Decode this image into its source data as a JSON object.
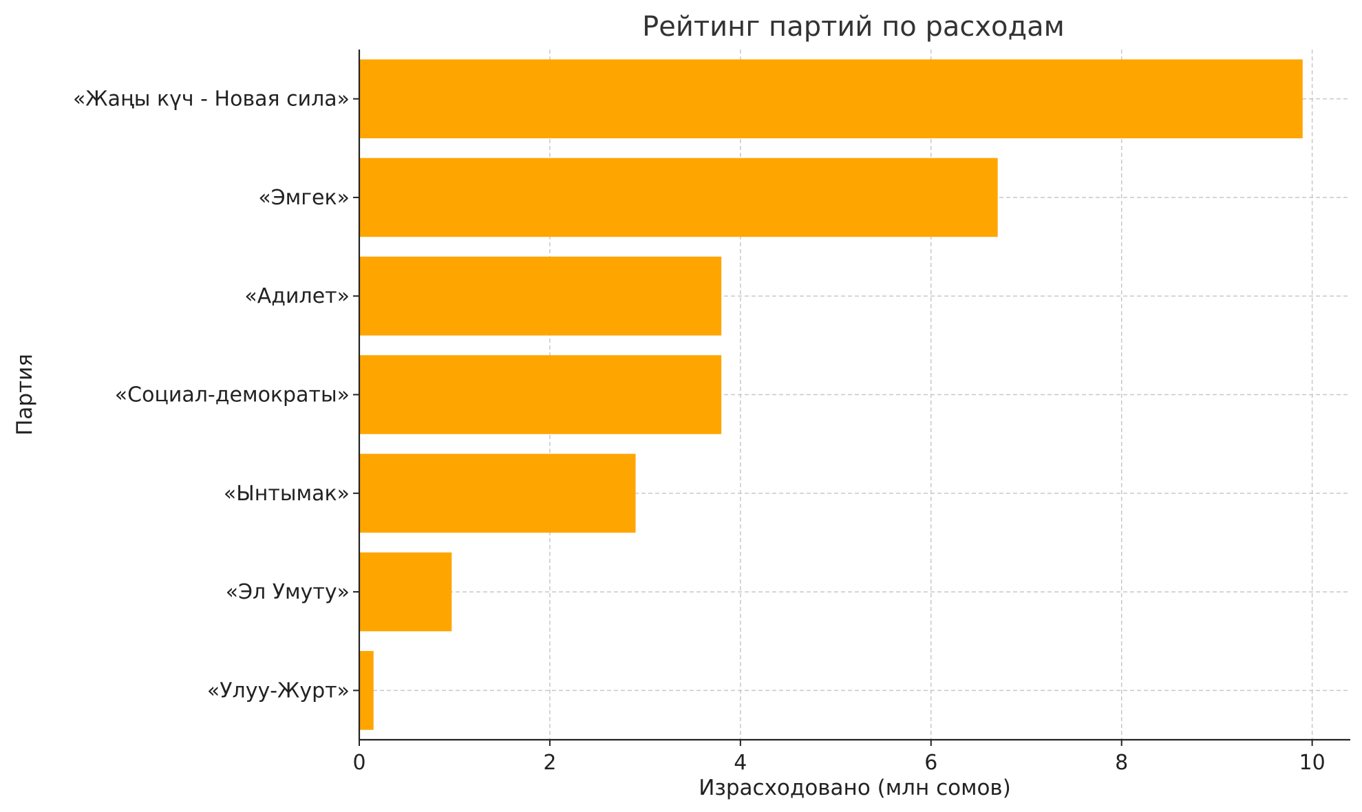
{
  "chart_data": {
    "type": "bar",
    "orientation": "horizontal",
    "title": "Рейтинг партий по расходам",
    "xlabel": "Израсходовано (млн сомов)",
    "ylabel": "Партия",
    "xlim": [
      0,
      10.4
    ],
    "xticks": [
      0,
      2,
      4,
      6,
      8,
      10
    ],
    "grid": true,
    "categories": [
      "«Жаңы күч - Новая сила»",
      "«Эмгек»",
      "«Адилет»",
      "«Социал-демократы»",
      "«Ынтымак»",
      "«Эл Умуту»",
      "«Улуу-Журт»"
    ],
    "values": [
      9.9,
      6.7,
      3.8,
      3.8,
      2.9,
      0.97,
      0.15
    ],
    "bar_color": "#FFA500"
  }
}
